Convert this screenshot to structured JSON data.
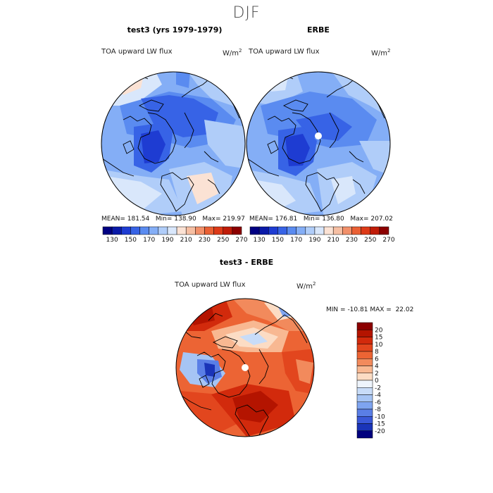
{
  "season": "DJF",
  "panels": [
    {
      "title": "test3 (yrs 1979-1979)",
      "variable": "TOA upward LW flux",
      "units": "W/m",
      "units_sup": "2",
      "mean_label": "MEAN=",
      "mean": "181.54",
      "min_label": "Min=",
      "min": "138.90",
      "max_label": "Max=",
      "max": "219.97"
    },
    {
      "title": "ERBE",
      "variable": "TOA upward LW flux",
      "units": "W/m",
      "units_sup": "2",
      "mean_label": "MEAN=",
      "mean": "176.81",
      "min_label": "Min=",
      "min": "136.80",
      "max_label": "Max=",
      "max": "207.02"
    }
  ],
  "diff_panel": {
    "title": "test3 - ERBE",
    "variable": "TOA upward LW flux",
    "units": "W/m",
    "units_sup": "2",
    "min_label": "MIN =",
    "min": "-10.81",
    "max_label": "MAX =",
    "max": "22.02"
  },
  "chart_data": [
    {
      "type": "heatmap",
      "projection": "north-polar-stereographic",
      "title": "test3 (yrs 1979-1979)",
      "variable": "TOA upward LW flux",
      "units": "W/m2",
      "stats": {
        "mean": 181.54,
        "min": 138.9,
        "max": 219.97
      },
      "colorbar": {
        "orientation": "horizontal",
        "levels": [
          130,
          140,
          150,
          160,
          170,
          180,
          190,
          200,
          210,
          220,
          230,
          240,
          250,
          260,
          270
        ],
        "tick_labels": [
          "130",
          "150",
          "170",
          "190",
          "210",
          "230",
          "250",
          "270"
        ],
        "colors": [
          "#000082",
          "#0a1aa8",
          "#1e3cd2",
          "#3763e6",
          "#5a8bf0",
          "#84aef6",
          "#b0cdf9",
          "#d9e7fb",
          "#fbe2d4",
          "#f6bfa3",
          "#f2906a",
          "#ea6034",
          "#dd3a18",
          "#c01c08",
          "#8c0000"
        ]
      }
    },
    {
      "type": "heatmap",
      "projection": "north-polar-stereographic",
      "title": "ERBE",
      "variable": "TOA upward LW flux",
      "units": "W/m2",
      "stats": {
        "mean": 176.81,
        "min": 136.8,
        "max": 207.02
      },
      "colorbar": {
        "orientation": "horizontal",
        "levels": [
          130,
          140,
          150,
          160,
          170,
          180,
          190,
          200,
          210,
          220,
          230,
          240,
          250,
          260,
          270
        ],
        "tick_labels": [
          "130",
          "150",
          "170",
          "190",
          "210",
          "230",
          "250",
          "270"
        ],
        "colors": [
          "#000082",
          "#0a1aa8",
          "#1e3cd2",
          "#3763e6",
          "#5a8bf0",
          "#84aef6",
          "#b0cdf9",
          "#d9e7fb",
          "#fbe2d4",
          "#f6bfa3",
          "#f2906a",
          "#ea6034",
          "#dd3a18",
          "#c01c08",
          "#8c0000"
        ]
      }
    },
    {
      "type": "heatmap",
      "projection": "north-polar-stereographic",
      "title": "test3 - ERBE",
      "variable": "TOA upward LW flux",
      "units": "W/m2",
      "stats": {
        "min": -10.81,
        "max": 22.02
      },
      "colorbar": {
        "orientation": "vertical",
        "tick_labels": [
          "20",
          "15",
          "10",
          "8",
          "6",
          "4",
          "2",
          "0",
          "-2",
          "-4",
          "-6",
          "-8",
          "-10",
          "-15",
          "-20"
        ],
        "colors": [
          "#8c0000",
          "#b41400",
          "#d22a0c",
          "#e2461e",
          "#ec6434",
          "#f28a5c",
          "#f8b892",
          "#fcdcc4",
          "#eef4fc",
          "#c8dcf8",
          "#a6c4f4",
          "#7ea4f0",
          "#5a7ee6",
          "#3a58d8",
          "#1a34b8",
          "#00007e"
        ]
      }
    }
  ]
}
